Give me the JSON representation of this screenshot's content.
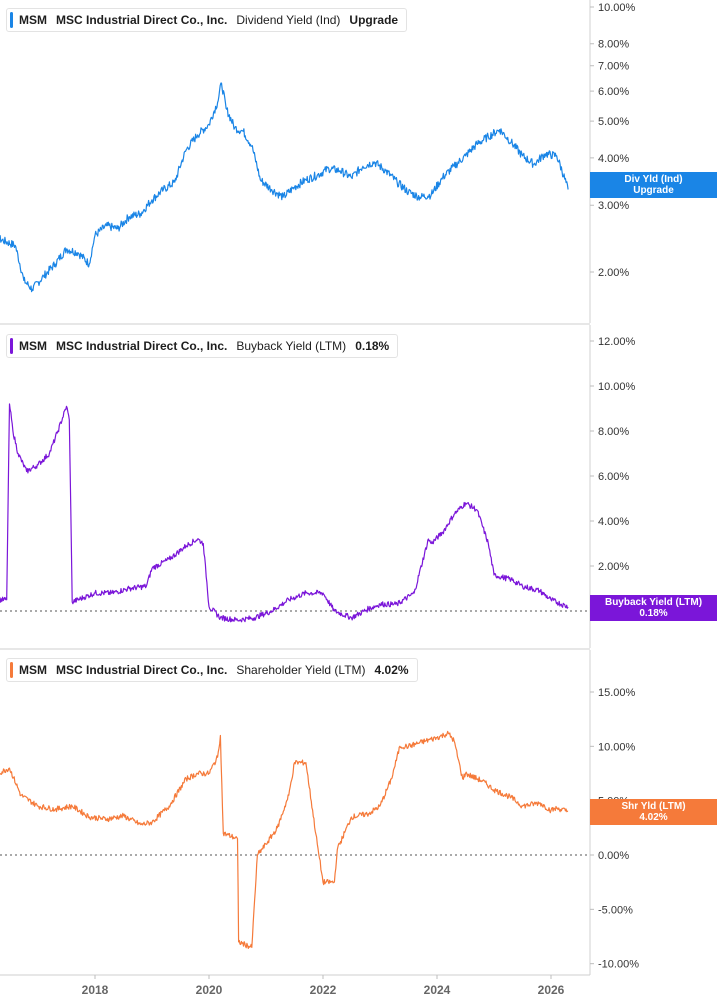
{
  "chart_data": [
    {
      "type": "line",
      "panel": "dividend",
      "ticker": "MSM",
      "company": "MSC Industrial Direct Co., Inc.",
      "metric": "Dividend Yield (Ind)",
      "legend_value": "Upgrade",
      "flag_label": "Div Yld (Ind)",
      "flag_value": "Upgrade",
      "color": "#1a85e6",
      "scale": "log",
      "y_ticks": [
        2,
        3,
        4,
        5,
        6,
        7,
        8,
        10
      ],
      "y_tick_labels": [
        "2.00%",
        "3.00%",
        "4.00%",
        "5.00%",
        "6.00%",
        "7.00%",
        "8.00%",
        "10.00%"
      ],
      "series": [
        {
          "x": [
            2016.0,
            2016.3,
            2016.6,
            2016.75,
            2016.9,
            2017.1,
            2017.3,
            2017.5,
            2017.7,
            2017.9,
            2018.0,
            2018.2,
            2018.4,
            2018.6,
            2018.8,
            2019.0,
            2019.2,
            2019.4,
            2019.6,
            2019.8,
            2020.0,
            2020.15,
            2020.22,
            2020.3,
            2020.45,
            2020.6,
            2020.75,
            2020.9,
            2021.1,
            2021.3,
            2021.5,
            2021.7,
            2021.9,
            2022.1,
            2022.3,
            2022.5,
            2022.7,
            2022.9,
            2023.1,
            2023.3,
            2023.5,
            2023.7,
            2023.9,
            2024.1,
            2024.3,
            2024.5,
            2024.7,
            2024.9,
            2025.1,
            2025.3,
            2025.5,
            2025.7,
            2025.9,
            2026.1,
            2026.3
          ],
          "y": [
            2.4,
            2.45,
            2.35,
            1.9,
            1.8,
            1.95,
            2.1,
            2.3,
            2.25,
            2.1,
            2.5,
            2.65,
            2.6,
            2.8,
            2.85,
            3.1,
            3.3,
            3.45,
            4.2,
            4.6,
            4.9,
            5.6,
            6.3,
            5.4,
            4.8,
            4.7,
            4.3,
            3.5,
            3.3,
            3.15,
            3.35,
            3.5,
            3.6,
            3.75,
            3.7,
            3.55,
            3.8,
            3.9,
            3.7,
            3.45,
            3.25,
            3.15,
            3.2,
            3.55,
            3.8,
            4.05,
            4.35,
            4.55,
            4.75,
            4.4,
            4.05,
            3.85,
            4.1,
            4.05,
            3.3
          ]
        }
      ]
    },
    {
      "type": "line",
      "panel": "buyback",
      "ticker": "MSM",
      "company": "MSC Industrial Direct Co., Inc.",
      "metric": "Buyback Yield (LTM)",
      "legend_value": "0.18%",
      "flag_label": "Buyback Yield (LTM)",
      "flag_value": "0.18%",
      "color": "#7b16d9",
      "scale": "linear",
      "reference_line": 0,
      "y_ticks": [
        2,
        4,
        6,
        8,
        10,
        12
      ],
      "y_tick_labels": [
        "2.00%",
        "4.00%",
        "6.00%",
        "8.00%",
        "10.00%",
        "12.00%"
      ],
      "series": [
        {
          "x": [
            2016.0,
            2016.45,
            2016.5,
            2016.56,
            2016.65,
            2016.8,
            2017.0,
            2017.2,
            2017.35,
            2017.5,
            2017.55,
            2017.6,
            2017.8,
            2018.0,
            2018.3,
            2018.6,
            2018.9,
            2019.0,
            2019.3,
            2019.6,
            2019.8,
            2019.9,
            2020.0,
            2020.2,
            2020.5,
            2020.8,
            2021.1,
            2021.4,
            2021.7,
            2022.0,
            2022.2,
            2022.5,
            2022.8,
            2023.0,
            2023.3,
            2023.6,
            2023.85,
            2023.9,
            2024.1,
            2024.3,
            2024.5,
            2024.7,
            2024.9,
            2025.0,
            2025.3,
            2025.5,
            2025.8,
            2026.0,
            2026.3
          ],
          "y": [
            0.5,
            0.5,
            9.2,
            8.0,
            7.0,
            6.2,
            6.5,
            7.0,
            8.0,
            9.1,
            8.5,
            0.4,
            0.6,
            0.8,
            0.8,
            1.0,
            1.1,
            1.9,
            2.3,
            2.9,
            3.2,
            3.0,
            0.2,
            -0.3,
            -0.4,
            -0.3,
            0.0,
            0.5,
            0.8,
            0.8,
            0.0,
            -0.3,
            0.1,
            0.3,
            0.3,
            0.8,
            3.2,
            3.0,
            3.5,
            4.3,
            4.8,
            4.5,
            3.0,
            1.6,
            1.4,
            1.1,
            0.9,
            0.5,
            0.18
          ]
        }
      ]
    },
    {
      "type": "line",
      "panel": "shareholder",
      "ticker": "MSM",
      "company": "MSC Industrial Direct Co., Inc.",
      "metric": "Shareholder Yield (LTM)",
      "legend_value": "4.02%",
      "flag_label": "Shr Yld (LTM)",
      "flag_value": "4.02%",
      "color": "#f57a3a",
      "scale": "linear",
      "reference_line": 0,
      "y_ticks": [
        -10,
        -5,
        0,
        5,
        10,
        15
      ],
      "y_tick_labels": [
        "-10.00%",
        "-5.00%",
        "0.00%",
        "5.00%",
        "10.00%",
        "15.00%"
      ],
      "series": [
        {
          "x": [
            2016.0,
            2016.3,
            2016.5,
            2016.7,
            2017.0,
            2017.3,
            2017.6,
            2017.9,
            2018.2,
            2018.5,
            2018.8,
            2019.0,
            2019.3,
            2019.6,
            2019.8,
            2020.0,
            2020.15,
            2020.2,
            2020.25,
            2020.5,
            2020.52,
            2020.75,
            2020.85,
            2021.0,
            2021.2,
            2021.4,
            2021.5,
            2021.7,
            2021.9,
            2022.0,
            2022.2,
            2022.25,
            2022.5,
            2022.8,
            2023.0,
            2023.2,
            2023.35,
            2023.5,
            2023.8,
            2024.0,
            2024.2,
            2024.3,
            2024.45,
            2024.5,
            2024.8,
            2025.0,
            2025.3,
            2025.5,
            2025.8,
            2026.0,
            2026.1,
            2026.3
          ],
          "y": [
            7.5,
            7.5,
            8.0,
            5.5,
            4.5,
            4.2,
            4.5,
            3.5,
            3.3,
            3.6,
            2.8,
            3.0,
            4.5,
            7.0,
            7.5,
            7.5,
            9.0,
            11.0,
            2.0,
            1.5,
            -8.0,
            -8.5,
            0.0,
            1.0,
            2.5,
            5.5,
            8.5,
            8.5,
            1.0,
            -2.5,
            -2.5,
            0.5,
            3.5,
            3.8,
            4.5,
            7.0,
            10.0,
            10.0,
            10.5,
            10.8,
            11.2,
            10.5,
            7.0,
            7.5,
            6.8,
            6.0,
            5.3,
            4.5,
            4.8,
            4.1,
            4.3,
            4.02
          ]
        }
      ]
    }
  ],
  "x_axis": {
    "ticks": [
      2018,
      2020,
      2022,
      2024,
      2026
    ],
    "labels": [
      "2018",
      "2020",
      "2022",
      "2024",
      "2026"
    ]
  }
}
